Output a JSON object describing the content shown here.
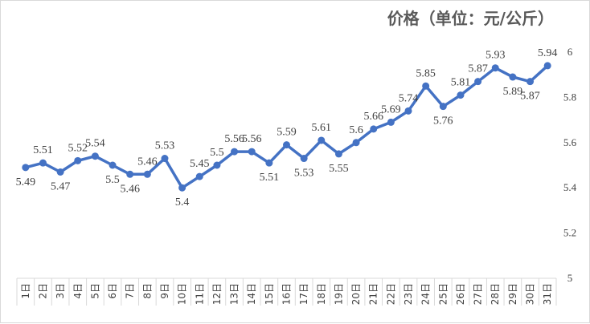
{
  "chart_data": {
    "type": "line",
    "title": "价格（单位：元/公斤）",
    "categories": [
      "1日",
      "2日",
      "3日",
      "4日",
      "5日",
      "6日",
      "7日",
      "8日",
      "9日",
      "10日",
      "11日",
      "12日",
      "13日",
      "14日",
      "15日",
      "16日",
      "17日",
      "18日",
      "19日",
      "20日",
      "21日",
      "22日",
      "23日",
      "24日",
      "25日",
      "26日",
      "27日",
      "28日",
      "29日",
      "30日",
      "31日"
    ],
    "series": [
      {
        "values": [
          5.49,
          5.51,
          5.47,
          5.52,
          5.54,
          5.5,
          5.46,
          5.46,
          5.53,
          5.4,
          5.45,
          5.5,
          5.56,
          5.56,
          5.51,
          5.59,
          5.53,
          5.61,
          5.55,
          5.6,
          5.66,
          5.69,
          5.74,
          5.85,
          5.76,
          5.81,
          5.87,
          5.93,
          5.89,
          5.87,
          5.94
        ],
        "color": "#4472C4"
      }
    ],
    "ylim": [
      5,
      6
    ],
    "yticks": [
      "5",
      "5.2",
      "5.4",
      "5.6",
      "5.8",
      "6"
    ],
    "y_axis_side": "right",
    "grid": false,
    "data_labels": true
  }
}
